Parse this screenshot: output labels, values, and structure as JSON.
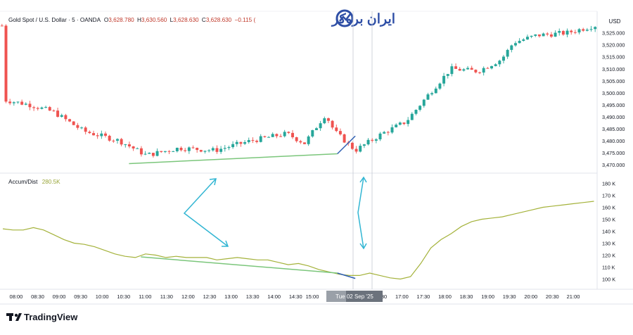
{
  "header": {
    "symbol": "Gold Spot / U.S. Dollar · 5 · OANDA",
    "o_label": "O",
    "o_value": "3,628.780",
    "h_label": "H",
    "h_value": "3,630.560",
    "l_label": "L",
    "l_value": "3,628.630",
    "c_label": "C",
    "c_value": "3,628.630",
    "change": "−0.115 (",
    "currency": "USD"
  },
  "brand": {
    "persian_logo": "ایران بروکر",
    "tradingview": "TradingView"
  },
  "indicator": {
    "name": "Accum/Dist",
    "value": "280.5K"
  },
  "colors": {
    "up": "#26a69a",
    "down": "#ef5350",
    "ad_line": "#a4b23a",
    "support": "#7bc67b",
    "arrow": "#32b6d3",
    "divergence": "#2f5fb3",
    "header_value": "#c0392b",
    "indicator_value": "#9aa63a"
  },
  "crosshair_label": "Tue 02 Sep '25",
  "chart_data": [
    {
      "type": "candlestick",
      "ylim": [
        3468,
        3529
      ],
      "y_ticks": [
        "3,525.000",
        "3,520.000",
        "3,515.000",
        "3,510.000",
        "3,505.000",
        "3,500.000",
        "3,495.000",
        "3,490.000",
        "3,485.000",
        "3,480.000",
        "3,475.000",
        "3,470.000"
      ],
      "y_tick_values": [
        3525,
        3520,
        3515,
        3510,
        3505,
        3500,
        3495,
        3490,
        3485,
        3480,
        3475,
        3470
      ],
      "trend_lines": [
        {
          "from": [
            0.216,
            3470.5
          ],
          "to": [
            0.565,
            3474.6
          ],
          "color": "support"
        },
        {
          "from": [
            0.565,
            3474.6
          ],
          "to": [
            0.595,
            3482.0
          ],
          "color": "divergence"
        }
      ]
    },
    {
      "type": "line",
      "series": [
        {
          "values": [
            142,
            141,
            141,
            143,
            141,
            137,
            133,
            130,
            129,
            127,
            124,
            121,
            119,
            118,
            121,
            120,
            118,
            119,
            118,
            118,
            118,
            116,
            117,
            118,
            117,
            116,
            116,
            114,
            112,
            113,
            111,
            108,
            106,
            104,
            103,
            103,
            105,
            103,
            101,
            100,
            102,
            113,
            126,
            133,
            138,
            144,
            148,
            150,
            151,
            152,
            154,
            156,
            158,
            160,
            161,
            162,
            163,
            164,
            165
          ]
        }
      ],
      "ylim": [
        95,
        185
      ],
      "y_ticks": [
        "180 K",
        "170 K",
        "160 K",
        "150 K",
        "140 K",
        "130 K",
        "120 K",
        "110 K",
        "100 K"
      ],
      "y_tick_values": [
        180,
        170,
        160,
        150,
        140,
        130,
        120,
        110,
        100
      ],
      "trend_lines": [
        {
          "from": [
            0.236,
            118.5
          ],
          "to": [
            0.565,
            105
          ],
          "color": "support"
        },
        {
          "from": [
            0.565,
            105
          ],
          "to": [
            0.595,
            100.5
          ],
          "color": "divergence"
        }
      ]
    }
  ],
  "x_axis": {
    "ticks": [
      "08:00",
      "08:30",
      "09:00",
      "09:30",
      "10:00",
      "10:30",
      "11:00",
      "11:30",
      "12:00",
      "12:30",
      "13:00",
      "13:30",
      "14:00",
      "14:30",
      "15:00",
      "16:30",
      "17:00",
      "17:30",
      "18:00",
      "18:30",
      "19:00",
      "19:30",
      "20:00",
      "20:30",
      "21:00"
    ],
    "tick_fractions": [
      0.027,
      0.063,
      0.099,
      0.135,
      0.171,
      0.207,
      0.243,
      0.279,
      0.315,
      0.351,
      0.387,
      0.423,
      0.459,
      0.495,
      0.523,
      0.637,
      0.673,
      0.709,
      0.745,
      0.781,
      0.817,
      0.853,
      0.889,
      0.925,
      0.96
    ]
  }
}
